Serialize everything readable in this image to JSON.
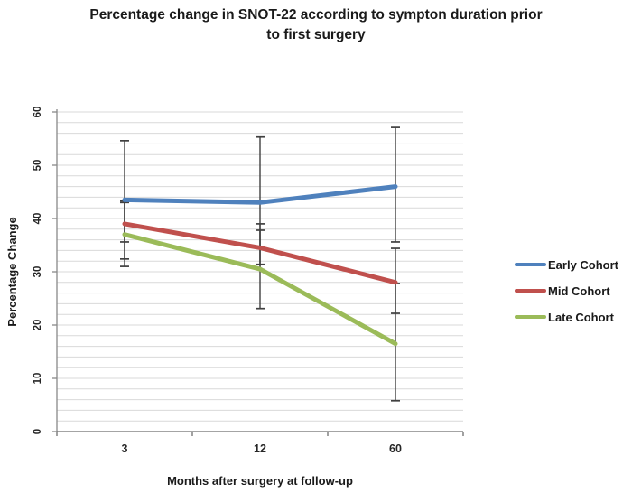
{
  "chart_data": {
    "type": "line",
    "title": "Percentage change in SNOT-22 according to sympton duration prior to first surgery",
    "title_lines": [
      "Percentage change in SNOT-22 according to sympton duration prior",
      "to first surgery"
    ],
    "xlabel": "Months after surgery at follow-up",
    "ylabel": "Percentage Change",
    "categories": [
      "3",
      "12",
      "60"
    ],
    "ylim": [
      0,
      60
    ],
    "ytick_step": 10,
    "ytick_labels": [
      "0",
      "10",
      "20",
      "30",
      "40",
      "50",
      "60"
    ],
    "minor_grid_step": 2,
    "grid": true,
    "error_bars": true,
    "legend_position": "right",
    "series": [
      {
        "name": "Early Cohort",
        "color": "#4F81BD",
        "values": [
          43.5,
          43,
          46
        ],
        "error_low": [
          32.4,
          31.4,
          35.6
        ],
        "error_high": [
          54.6,
          55.3,
          57.1
        ]
      },
      {
        "name": "Mid Cohort",
        "color": "#C0504D",
        "values": [
          39,
          34.5,
          28
        ],
        "error_low": [
          35.6,
          30.4,
          22.2
        ],
        "error_high": [
          43.3,
          39.0,
          34.4
        ]
      },
      {
        "name": "Late Cohort",
        "color": "#9BBB59",
        "values": [
          37,
          30.5,
          16.5
        ],
        "error_low": [
          31.0,
          23.1,
          5.8
        ],
        "error_high": [
          43.0,
          37.8,
          27.8
        ]
      }
    ],
    "colors": {
      "gridline": "#d9d9d9",
      "axis": "#898989",
      "x_axis": "#6e6e6e",
      "error_bar": "#404040",
      "text": "#1a1a1a"
    }
  }
}
